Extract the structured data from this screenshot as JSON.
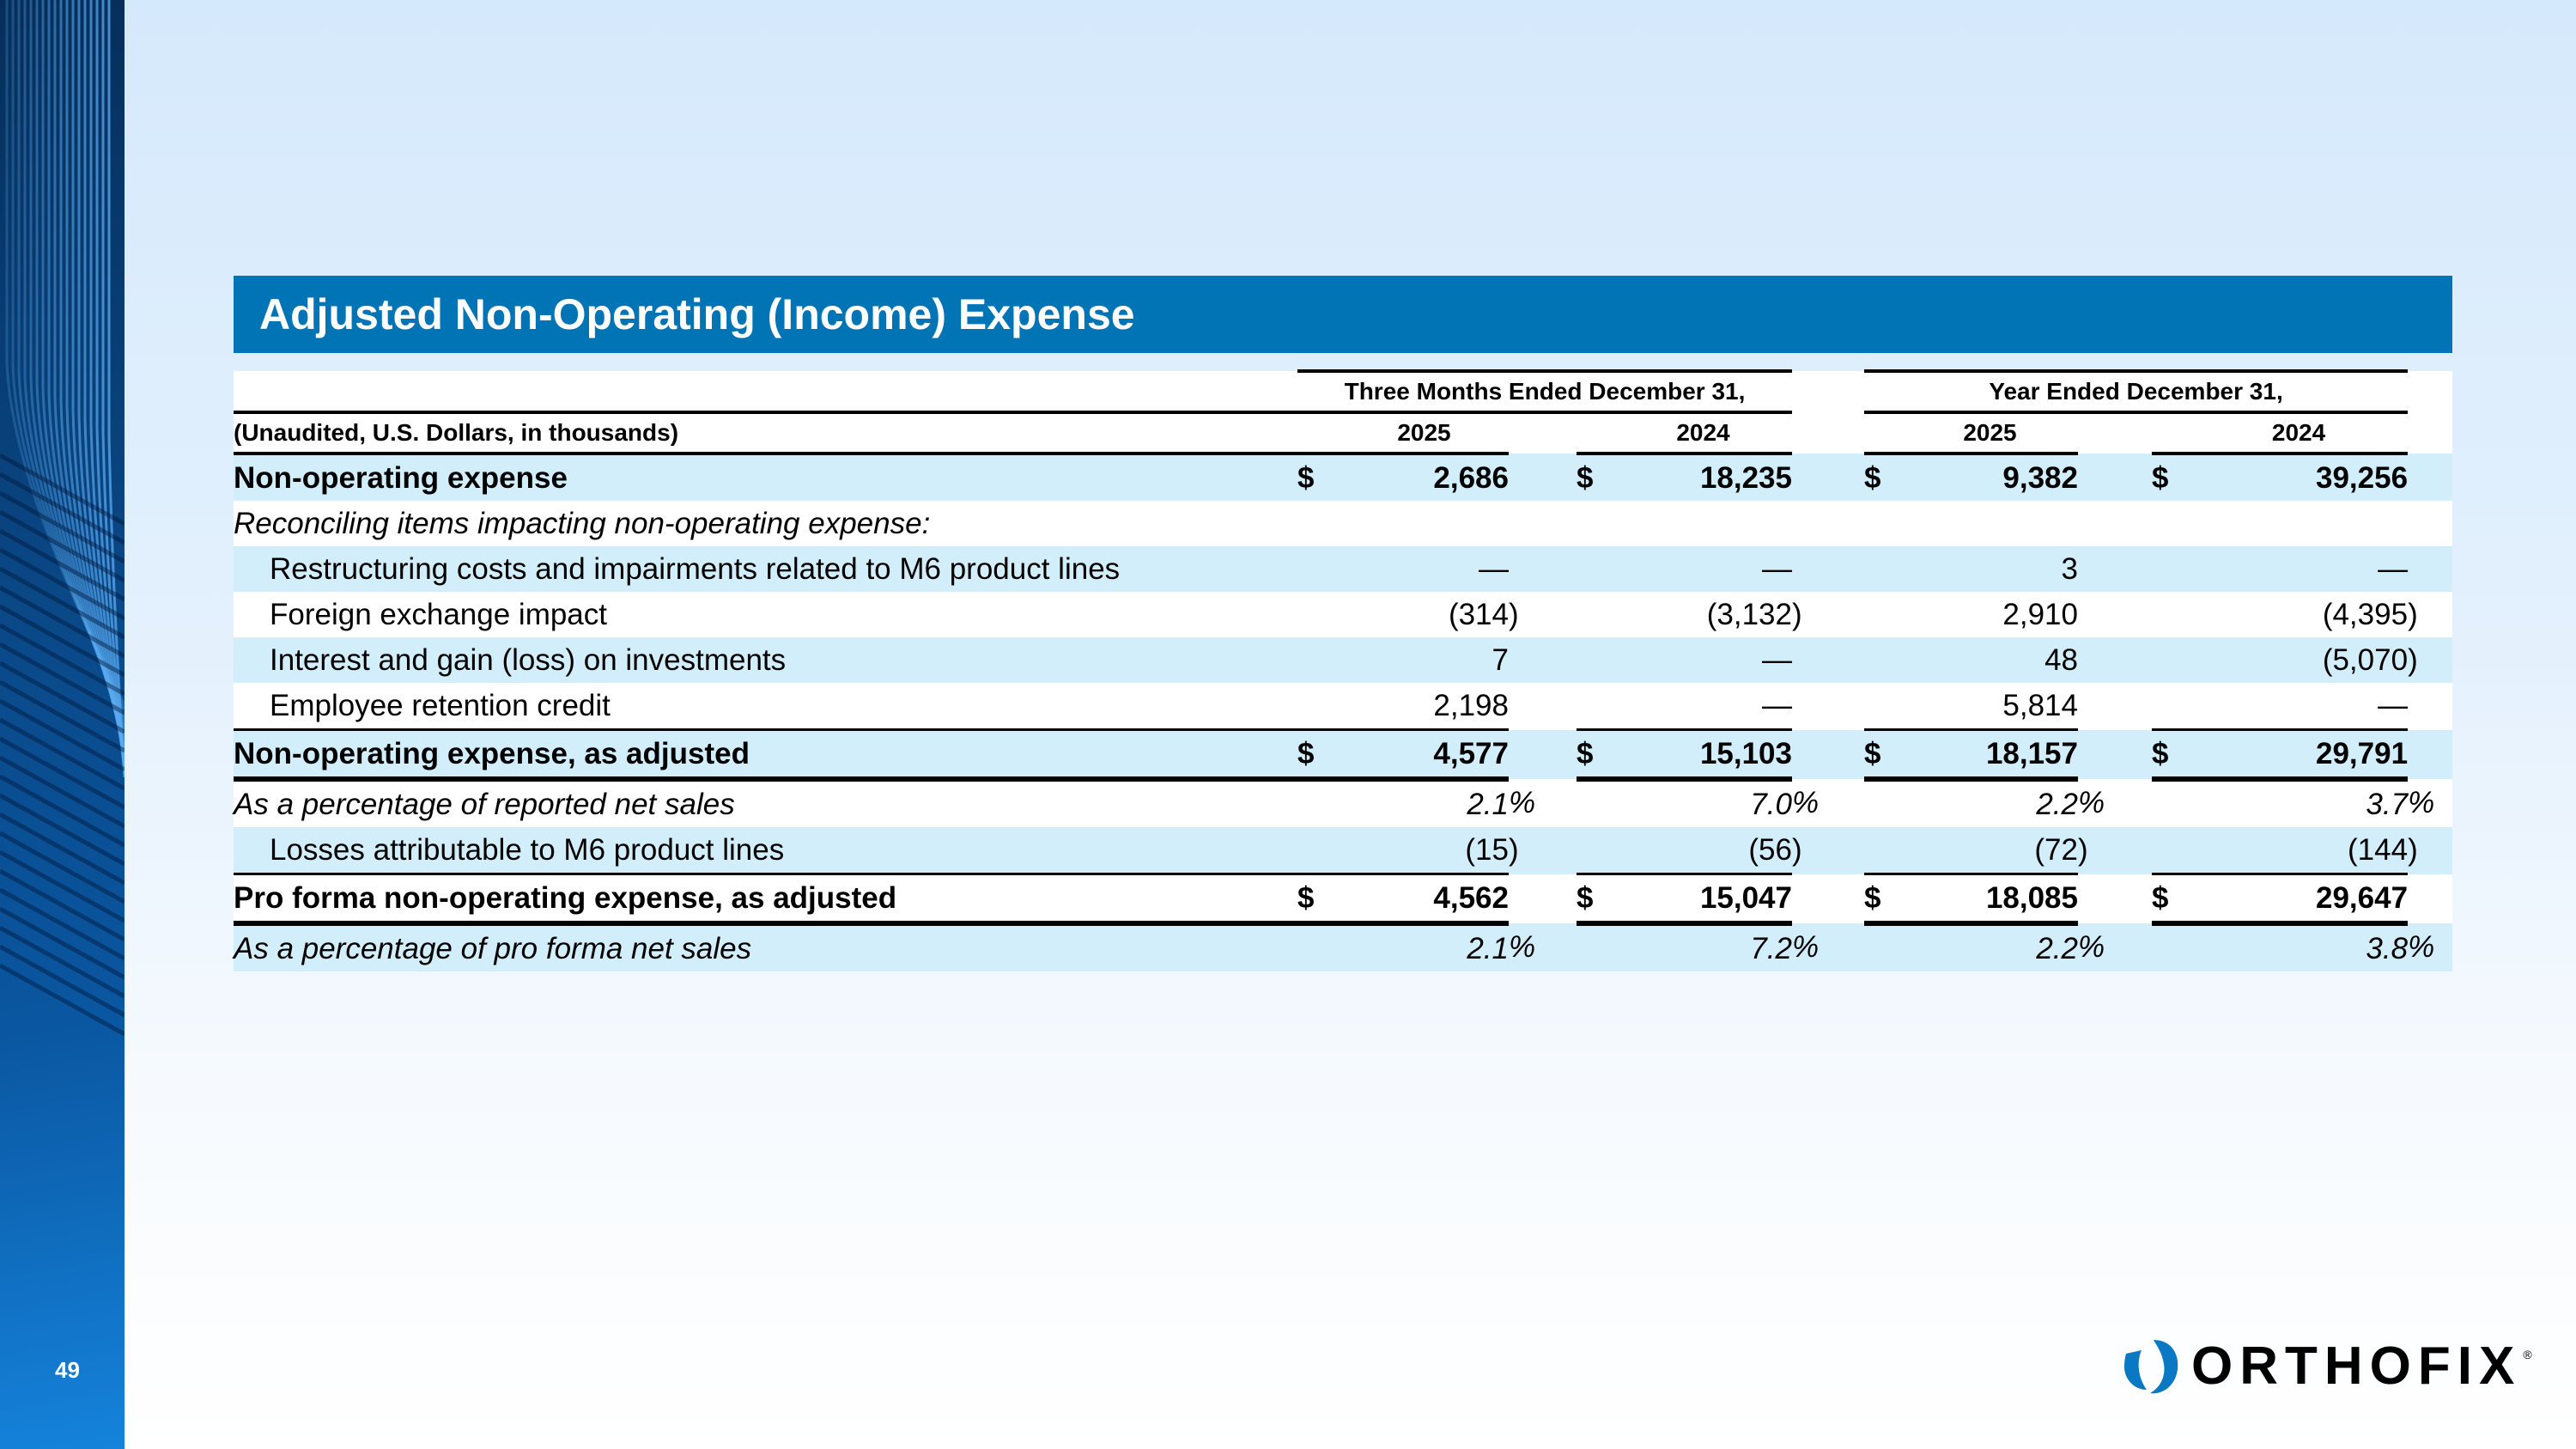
{
  "slide": {
    "page_number": "49",
    "title": "Adjusted Non-Operating (Income) Expense"
  },
  "logo": {
    "text": "ORTHOFIX",
    "mark": "®",
    "accent": "#0074b5"
  },
  "table": {
    "units_label": "(Unaudited, U.S. Dollars, in thousands)",
    "groups": [
      "Three Months Ended December 31,",
      "Year Ended December 31,"
    ],
    "years": [
      "2025",
      "2024",
      "2025",
      "2024"
    ],
    "rows": [
      {
        "label": "Non-operating expense",
        "style": "bold",
        "bg": "blue",
        "indent": false,
        "cells": [
          {
            "cur": "$",
            "val": "2,686",
            "suf": ""
          },
          {
            "cur": "$",
            "val": "18,235",
            "suf": ""
          },
          {
            "cur": "$",
            "val": "9,382",
            "suf": ""
          },
          {
            "cur": "$",
            "val": "39,256",
            "suf": ""
          }
        ]
      },
      {
        "label": "Reconciling items impacting non-operating expense:",
        "style": "italic",
        "bg": "white",
        "indent": false,
        "cells": []
      },
      {
        "label": "Restructuring costs and impairments related to M6 product lines",
        "style": "",
        "bg": "blue",
        "indent": true,
        "cells": [
          {
            "cur": "",
            "val": "—",
            "suf": ""
          },
          {
            "cur": "",
            "val": "—",
            "suf": ""
          },
          {
            "cur": "",
            "val": "3",
            "suf": ""
          },
          {
            "cur": "",
            "val": "—",
            "suf": ""
          }
        ]
      },
      {
        "label": "Foreign exchange impact",
        "style": "",
        "bg": "white",
        "indent": true,
        "cells": [
          {
            "cur": "",
            "val": "(314",
            "suf": ")"
          },
          {
            "cur": "",
            "val": "(3,132",
            "suf": ")"
          },
          {
            "cur": "",
            "val": "2,910",
            "suf": ""
          },
          {
            "cur": "",
            "val": "(4,395",
            "suf": ")"
          }
        ]
      },
      {
        "label": "Interest and gain (loss) on investments",
        "style": "",
        "bg": "blue",
        "indent": true,
        "cells": [
          {
            "cur": "",
            "val": "7",
            "suf": ""
          },
          {
            "cur": "",
            "val": "—",
            "suf": ""
          },
          {
            "cur": "",
            "val": "48",
            "suf": ""
          },
          {
            "cur": "",
            "val": "(5,070",
            "suf": ")"
          }
        ]
      },
      {
        "label": "Employee retention credit",
        "style": "",
        "bg": "white",
        "indent": true,
        "cells": [
          {
            "cur": "",
            "val": "2,198",
            "suf": ""
          },
          {
            "cur": "",
            "val": "—",
            "suf": ""
          },
          {
            "cur": "",
            "val": "5,814",
            "suf": ""
          },
          {
            "cur": "",
            "val": "—",
            "suf": ""
          }
        ]
      },
      {
        "label": "Non-operating expense, as adjusted",
        "style": "bold total",
        "bg": "blue",
        "indent": false,
        "cells": [
          {
            "cur": "$",
            "val": "4,577",
            "suf": ""
          },
          {
            "cur": "$",
            "val": "15,103",
            "suf": ""
          },
          {
            "cur": "$",
            "val": "18,157",
            "suf": ""
          },
          {
            "cur": "$",
            "val": "29,791",
            "suf": ""
          }
        ]
      },
      {
        "label": "As a percentage of reported net sales",
        "style": "italic",
        "bg": "white",
        "indent": false,
        "cells": [
          {
            "cur": "",
            "val": "2.1",
            "suf": "%"
          },
          {
            "cur": "",
            "val": "7.0",
            "suf": "%"
          },
          {
            "cur": "",
            "val": "2.2",
            "suf": "%"
          },
          {
            "cur": "",
            "val": "3.7",
            "suf": "%"
          }
        ]
      },
      {
        "label": "Losses attributable to M6 product lines",
        "style": "",
        "bg": "blue",
        "indent": true,
        "cells": [
          {
            "cur": "",
            "val": "(15",
            "suf": ")"
          },
          {
            "cur": "",
            "val": "(56",
            "suf": ")"
          },
          {
            "cur": "",
            "val": "(72",
            "suf": ")"
          },
          {
            "cur": "",
            "val": "(144",
            "suf": ")"
          }
        ]
      },
      {
        "label": "Pro forma non-operating expense, as adjusted",
        "style": "bold total",
        "bg": "white",
        "indent": false,
        "cells": [
          {
            "cur": "$",
            "val": "4,562",
            "suf": ""
          },
          {
            "cur": "$",
            "val": "15,047",
            "suf": ""
          },
          {
            "cur": "$",
            "val": "18,085",
            "suf": ""
          },
          {
            "cur": "$",
            "val": "29,647",
            "suf": ""
          }
        ]
      },
      {
        "label": "As a percentage of pro forma net sales",
        "style": "italic",
        "bg": "blue",
        "indent": false,
        "cells": [
          {
            "cur": "",
            "val": "2.1",
            "suf": "%"
          },
          {
            "cur": "",
            "val": "7.2",
            "suf": "%"
          },
          {
            "cur": "",
            "val": "2.2",
            "suf": "%"
          },
          {
            "cur": "",
            "val": "3.8",
            "suf": "%"
          }
        ]
      }
    ]
  }
}
